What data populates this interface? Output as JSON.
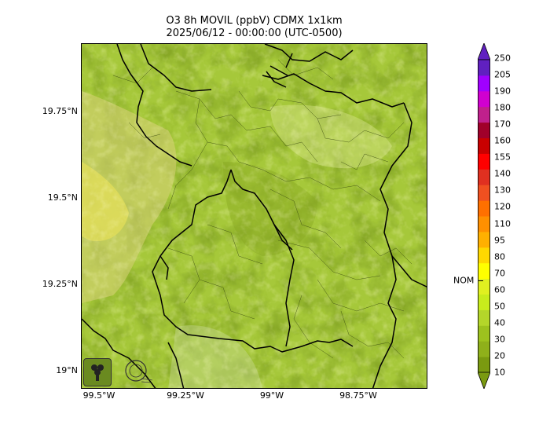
{
  "title": {
    "line1": "O3 8h MOVIL (ppbV) CDMX 1x1km",
    "line2": "2025/06/12 - 00:00:00 (UTC-0500)"
  },
  "map": {
    "lat_labels": [
      "19.75°N",
      "19.5°N",
      "19.25°N",
      "19°N"
    ],
    "lon_labels": [
      "99.5°W",
      "99.25°W",
      "99°W",
      "98.75°W"
    ],
    "logos": [
      "sedema-logo",
      "cdmx-gov-logo"
    ]
  },
  "colorbar": {
    "levels": [
      "10",
      "20",
      "30",
      "40",
      "50",
      "60",
      "70",
      "80",
      "95",
      "110",
      "120",
      "130",
      "140",
      "155",
      "160",
      "170",
      "180",
      "190",
      "205",
      "250"
    ],
    "colors": [
      "#7a9a10",
      "#8fb01a",
      "#9dc21e",
      "#b4d62a",
      "#c8ec1c",
      "#e0f020",
      "#ffff00",
      "#ffd800",
      "#ffb000",
      "#ff9000",
      "#ff7000",
      "#f05020",
      "#e03020",
      "#ff0000",
      "#c80000",
      "#a0002a",
      "#c0208c",
      "#d000d0",
      "#a000ff",
      "#6020c0"
    ],
    "nom_label": "NOM"
  }
}
